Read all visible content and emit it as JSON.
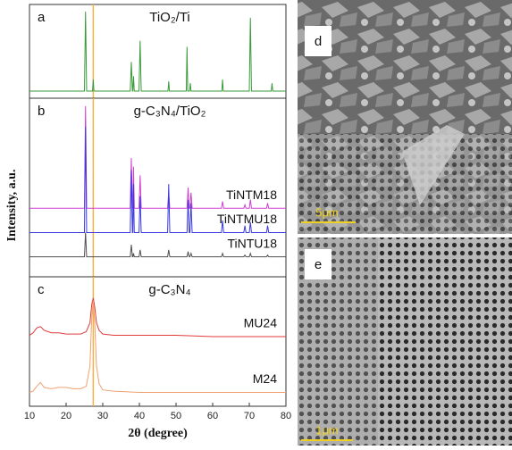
{
  "chart_data": [
    {
      "type": "line",
      "panel_label": "a",
      "title": "TiO₂/Ti",
      "xlim": [
        10,
        80
      ],
      "ylim": [
        0,
        100
      ],
      "vline": {
        "x": 27.4,
        "color": "#f5b342"
      },
      "x": [
        10,
        25.0,
        25.3,
        25.6,
        27.2,
        27.4,
        27.6,
        37.5,
        37.8,
        38.1,
        38.2,
        38.4,
        38.6,
        39.9,
        40.2,
        40.5,
        47.8,
        48.0,
        48.2,
        52.8,
        53.0,
        53.2,
        53.7,
        53.9,
        54.1,
        62.5,
        62.7,
        62.9,
        70.0,
        70.3,
        70.6,
        76.0,
        76.2,
        76.4,
        80
      ],
      "series": [
        {
          "color": "#3a9a3a",
          "values": [
            5,
            5,
            95,
            5,
            5,
            18,
            5,
            5,
            38,
            5,
            5,
            22,
            5,
            5,
            62,
            5,
            5,
            16,
            5,
            5,
            55,
            5,
            5,
            14,
            5,
            5,
            18,
            5,
            5,
            88,
            5,
            5,
            14,
            5,
            5
          ]
        }
      ]
    },
    {
      "type": "line",
      "panel_label": "b",
      "title": "g-C₃N₄/TiO₂",
      "ylabel": "Intensity, a.u.",
      "xlim": [
        10,
        80
      ],
      "ylim": [
        0,
        100
      ],
      "vline": {
        "x": 27.4,
        "color": "#f5b342"
      },
      "x": [
        10,
        25.0,
        25.3,
        25.6,
        37.5,
        37.8,
        38.1,
        38.2,
        38.4,
        38.6,
        39.9,
        40.2,
        40.5,
        47.7,
        48.0,
        48.3,
        53.0,
        53.3,
        53.6,
        53.8,
        54.1,
        54.4,
        62.4,
        62.7,
        63.0,
        68.5,
        68.8,
        69.1,
        70.0,
        70.3,
        70.6,
        74.7,
        75.0,
        75.3,
        80
      ],
      "series": [
        {
          "name": "TiNTM18",
          "color": "#d040d0",
          "values": [
            38,
            38,
            97,
            38,
            38,
            67,
            38,
            38,
            62,
            38,
            38,
            57,
            38,
            38,
            47,
            38,
            38,
            50,
            38,
            38,
            47,
            38,
            38,
            42,
            38,
            38,
            40,
            38,
            38,
            43,
            38,
            38,
            41,
            38,
            38
          ]
        },
        {
          "name": "TiNTMU18",
          "color": "#3a3ae0",
          "values": [
            24,
            24,
            85,
            24,
            24,
            60,
            24,
            24,
            52,
            24,
            24,
            45,
            24,
            24,
            52,
            24,
            24,
            43,
            24,
            24,
            41,
            24,
            24,
            31,
            24,
            24,
            28,
            24,
            24,
            30,
            24,
            24,
            28,
            24,
            24
          ]
        },
        {
          "name": "TiNTU18",
          "color": "#505050",
          "values": [
            10,
            10,
            24,
            10,
            10,
            17,
            10,
            10,
            12,
            10,
            10,
            14,
            10,
            10,
            14,
            10,
            10,
            13,
            10,
            10,
            12,
            10,
            10,
            12,
            10,
            10,
            11,
            10,
            10,
            12,
            10,
            10,
            11,
            10,
            10
          ]
        }
      ]
    },
    {
      "type": "line",
      "panel_label": "c",
      "title": "g-C₃N₄",
      "xlabel": "2θ (degree)",
      "xlim": [
        10,
        80
      ],
      "ylim": [
        0,
        100
      ],
      "xticks": [
        10,
        20,
        30,
        40,
        50,
        60,
        70,
        80
      ],
      "vline": {
        "x": 27.4,
        "color": "#f5b342"
      },
      "x": [
        10,
        11,
        12,
        13,
        14,
        16,
        18,
        20,
        22,
        24,
        25.5,
        26.5,
        27.0,
        27.4,
        27.8,
        28.3,
        29,
        30,
        33,
        40,
        50,
        60,
        70,
        80
      ],
      "series": [
        {
          "name": "MU24",
          "color": "#e03a3a",
          "values": [
            55,
            57,
            61,
            62,
            59,
            57,
            57,
            56,
            56,
            56,
            58,
            65,
            80,
            85,
            78,
            65,
            59,
            56,
            55,
            55,
            55,
            54,
            54,
            54
          ]
        },
        {
          "name": "M24",
          "color": "#f0a070",
          "values": [
            9,
            10,
            14,
            17,
            13,
            12,
            13,
            13,
            12,
            12,
            14,
            30,
            70,
            83,
            65,
            30,
            16,
            11,
            10,
            9,
            9,
            9,
            9,
            9
          ]
        }
      ]
    }
  ],
  "images": [
    {
      "label": "d",
      "scale_bar": "5μm"
    },
    {
      "label": "e",
      "scale_bar": "1μm"
    }
  ]
}
